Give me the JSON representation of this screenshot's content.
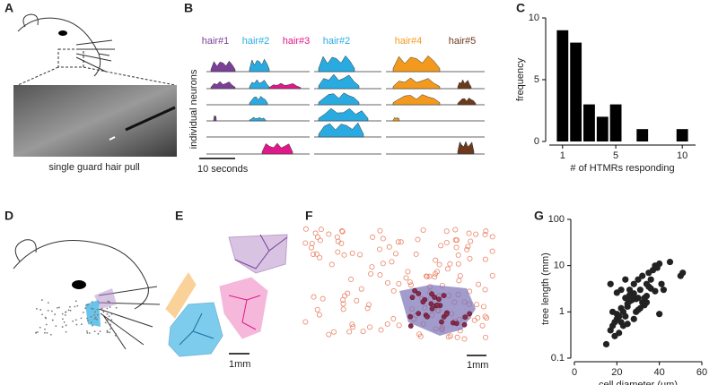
{
  "panel_labels": [
    "A",
    "B",
    "C",
    "D",
    "E",
    "F",
    "G"
  ],
  "panel_a": {
    "caption": "single guard hair pull"
  },
  "panel_b": {
    "stimuli": [
      {
        "label": "hair#1",
        "color": "#7b3f98"
      },
      {
        "label": "hair#2",
        "color": "#29abe2"
      },
      {
        "label": "hair#3",
        "color": "#e0198a"
      },
      {
        "label": "hair#2",
        "color": "#29abe2"
      },
      {
        "label": "hair#4",
        "color": "#f39a1e"
      },
      {
        "label": "hair#5",
        "color": "#6b3a1e"
      }
    ],
    "y_label": "individual neurons",
    "scale_bar": "10 seconds"
  },
  "panel_e": {
    "scale_bar": "1mm"
  },
  "panel_f": {
    "scale_bar": "1mm"
  },
  "chart_data": [
    {
      "type": "histogram",
      "x_label": "# of HTMRs responding",
      "y_label": "frequency",
      "bins": [
        0.5,
        1.5,
        2.5,
        3.5,
        4.5,
        5.5,
        6.5,
        7.5,
        8.5,
        9.5,
        10.5
      ],
      "values": [
        9,
        8,
        3,
        2,
        3,
        0,
        1,
        0,
        0,
        1
      ],
      "color": "#000000",
      "xlim": [
        0,
        11
      ],
      "xticks": [
        1,
        5,
        10
      ],
      "ylim": [
        0,
        10
      ],
      "yticks": [
        0,
        5,
        10
      ]
    },
    {
      "type": "scatter",
      "x_label": "cell diameter (um)",
      "y_label": "tree length (mm)",
      "color": "#222222",
      "x": [
        15,
        17,
        18,
        19,
        20,
        21,
        22,
        23,
        24,
        25,
        26,
        27,
        28,
        29,
        30,
        31,
        32,
        33,
        34,
        35,
        36,
        37,
        38,
        39,
        40,
        41,
        42,
        45,
        50,
        51,
        18,
        20,
        22,
        24,
        25,
        27,
        28,
        30,
        32,
        34,
        35,
        38,
        40,
        22,
        24,
        26,
        28,
        30,
        33,
        36,
        20,
        23,
        26,
        29,
        31,
        34,
        17,
        19,
        21,
        25
      ],
      "y": [
        0.2,
        0.4,
        0.5,
        0.6,
        0.7,
        0.8,
        1.2,
        1,
        2,
        1.5,
        3,
        2,
        4,
        1,
        5,
        3,
        6,
        2,
        4,
        7,
        5,
        8,
        10,
        9,
        11,
        4,
        3,
        12,
        6,
        7,
        1,
        0.9,
        0.6,
        0.8,
        1.3,
        1.8,
        2.5,
        1.1,
        1.6,
        2.2,
        3.5,
        2.8,
        0.9,
        3,
        5,
        1.7,
        0.7,
        2,
        1.4,
        3.2,
        2.6,
        0.5,
        2.3,
        1.9,
        1.2,
        1.6,
        4,
        0.3,
        0.35,
        0.55
      ],
      "xlim": [
        0,
        60
      ],
      "xticks": [
        0,
        20,
        40,
        60
      ],
      "ylim": [
        0.1,
        100
      ],
      "yticks": [
        0.1,
        1,
        10,
        100
      ],
      "log_y": true
    }
  ]
}
